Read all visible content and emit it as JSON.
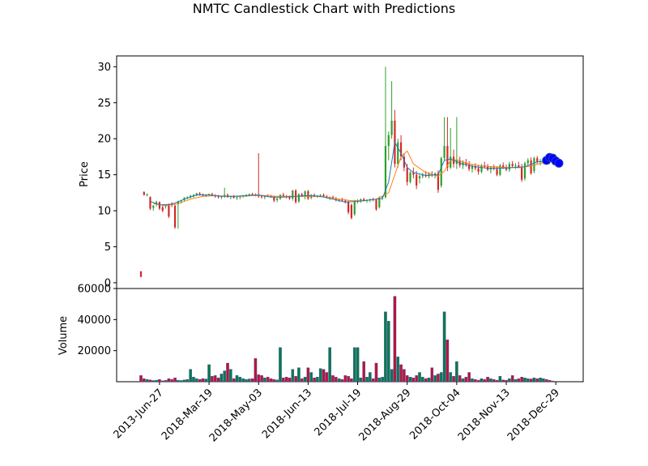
{
  "chart_data": {
    "type": "candlestick",
    "title": "NMTC Candlestick Chart with Predictions",
    "price_panel": {
      "ylabel": "Price",
      "yticks": [
        0,
        5,
        10,
        15,
        20,
        25,
        30
      ],
      "ylim": [
        -0.8,
        31.5
      ]
    },
    "volume_panel": {
      "ylabel": "Volume",
      "yticks": [
        20000,
        40000,
        60000
      ],
      "ytick_labels": [
        "20000",
        "40000",
        "60000"
      ],
      "ylim": [
        0,
        60000
      ]
    },
    "xticks": [
      {
        "i": 6,
        "label": "2013-Jun-27"
      },
      {
        "i": 22,
        "label": "2018-Mar-19"
      },
      {
        "i": 38,
        "label": "2018-May-03"
      },
      {
        "i": 54,
        "label": "2018-Jun-13"
      },
      {
        "i": 70,
        "label": "2018-Jul-19"
      },
      {
        "i": 86,
        "label": "2018-Aug-29"
      },
      {
        "i": 102,
        "label": "2018-Oct-04"
      },
      {
        "i": 118,
        "label": "2018-Nov-13"
      },
      {
        "i": 134,
        "label": "2018-Dec-29"
      }
    ],
    "n_points": 136,
    "up_color": "#2ca02c",
    "down_color": "#d62728",
    "ma_short_color": "#1f77b4",
    "ma_long_color": "#ff7f0e",
    "prediction_color": "#0000ff",
    "volume_up_color": "#007a4d",
    "volume_down_color": "#b3173b",
    "volume_edge_color": "#5a4fa0",
    "candles": [
      [
        1.6,
        1.6,
        0.8,
        0.8,
        4000
      ],
      [
        12.6,
        12.7,
        12.1,
        12.2,
        2000
      ],
      [
        12.2,
        12.4,
        12.0,
        12.3,
        1500
      ],
      [
        11.9,
        12.0,
        10.1,
        10.3,
        1200
      ],
      [
        10.4,
        10.8,
        10.0,
        10.7,
        800
      ],
      [
        10.9,
        11.4,
        10.6,
        11.2,
        1000
      ],
      [
        11.2,
        11.3,
        10.1,
        10.3,
        1500
      ],
      [
        10.5,
        10.8,
        9.8,
        10.0,
        600
      ],
      [
        10.6,
        10.9,
        10.3,
        10.8,
        900
      ],
      [
        10.8,
        11.0,
        9.0,
        9.2,
        2000
      ],
      [
        11.0,
        11.2,
        10.5,
        10.8,
        1500
      ],
      [
        10.7,
        10.9,
        7.5,
        7.7,
        2500
      ],
      [
        10.9,
        11.4,
        7.5,
        11.3,
        1000
      ],
      [
        11.3,
        11.5,
        11.0,
        11.4,
        800
      ],
      [
        11.5,
        11.9,
        11.3,
        11.8,
        1200
      ],
      [
        11.8,
        12.0,
        11.6,
        11.9,
        1500
      ],
      [
        11.9,
        12.2,
        11.7,
        12.1,
        8000
      ],
      [
        12.0,
        12.3,
        11.8,
        12.2,
        3000
      ],
      [
        12.2,
        12.5,
        12.0,
        12.4,
        2000
      ],
      [
        12.4,
        12.6,
        12.1,
        12.2,
        1500
      ],
      [
        12.2,
        12.4,
        12.0,
        12.1,
        2000
      ],
      [
        12.1,
        12.3,
        11.9,
        12.2,
        1800
      ],
      [
        12.2,
        12.4,
        12.0,
        12.3,
        11000
      ],
      [
        12.3,
        12.5,
        12.0,
        12.1,
        3500
      ],
      [
        12.1,
        12.3,
        11.8,
        12.0,
        4000
      ],
      [
        12.0,
        12.2,
        11.7,
        11.9,
        2500
      ],
      [
        11.9,
        12.1,
        11.6,
        12.0,
        5000
      ],
      [
        12.0,
        13.2,
        11.8,
        12.2,
        7000
      ],
      [
        12.2,
        12.4,
        11.8,
        11.9,
        12000
      ],
      [
        11.9,
        12.1,
        11.6,
        12.0,
        8000
      ],
      [
        12.0,
        12.2,
        11.7,
        11.8,
        2000
      ],
      [
        11.8,
        12.0,
        11.5,
        11.9,
        4000
      ],
      [
        11.9,
        12.1,
        11.6,
        12.0,
        3000
      ],
      [
        12.0,
        12.2,
        11.8,
        12.1,
        2000
      ],
      [
        12.1,
        12.3,
        11.9,
        12.2,
        1500
      ],
      [
        12.2,
        12.4,
        12.0,
        12.3,
        1800
      ],
      [
        12.3,
        12.5,
        12.1,
        12.2,
        2000
      ],
      [
        12.2,
        12.4,
        12.0,
        12.1,
        15000
      ],
      [
        12.1,
        18.0,
        11.8,
        12.0,
        4500
      ],
      [
        12.0,
        12.2,
        11.7,
        11.9,
        4000
      ],
      [
        11.9,
        12.1,
        11.6,
        12.1,
        2500
      ],
      [
        12.1,
        12.3,
        11.9,
        12.0,
        3000
      ],
      [
        12.0,
        12.2,
        11.8,
        11.9,
        2000
      ],
      [
        11.9,
        12.1,
        11.2,
        11.4,
        1500
      ],
      [
        11.5,
        11.8,
        11.2,
        11.7,
        1200
      ],
      [
        11.7,
        12.3,
        11.5,
        12.2,
        22000
      ],
      [
        12.2,
        12.5,
        11.9,
        12.0,
        2500
      ],
      [
        12.0,
        12.2,
        11.7,
        11.9,
        3000
      ],
      [
        11.9,
        12.1,
        11.5,
        11.7,
        2500
      ],
      [
        11.7,
        12.9,
        11.4,
        12.8,
        8000
      ],
      [
        12.8,
        13.0,
        11.0,
        11.2,
        3500
      ],
      [
        11.3,
        12.4,
        11.1,
        12.3,
        9000
      ],
      [
        12.3,
        12.5,
        11.9,
        12.0,
        2000
      ],
      [
        12.0,
        12.8,
        11.6,
        12.7,
        3000
      ],
      [
        12.7,
        12.9,
        11.5,
        11.7,
        9000
      ],
      [
        11.8,
        12.3,
        11.6,
        12.2,
        6000
      ],
      [
        12.2,
        12.4,
        11.9,
        12.0,
        2500
      ],
      [
        12.0,
        12.2,
        11.8,
        12.1,
        3000
      ],
      [
        12.1,
        12.3,
        11.9,
        12.2,
        8500
      ],
      [
        12.2,
        12.4,
        11.9,
        12.0,
        8000
      ],
      [
        12.0,
        12.2,
        11.7,
        11.8,
        6000
      ],
      [
        11.8,
        12.0,
        11.5,
        11.9,
        22000
      ],
      [
        11.9,
        12.1,
        11.6,
        11.7,
        4000
      ],
      [
        11.7,
        11.9,
        11.3,
        11.5,
        3000
      ],
      [
        11.5,
        11.7,
        11.2,
        11.6,
        2000
      ],
      [
        11.6,
        11.8,
        11.3,
        11.4,
        1500
      ],
      [
        11.4,
        11.6,
        11.0,
        11.2,
        4000
      ],
      [
        11.2,
        11.4,
        9.5,
        9.8,
        3500
      ],
      [
        10.8,
        11.0,
        8.8,
        9.0,
        2000
      ],
      [
        9.5,
        11.5,
        9.3,
        11.3,
        22000
      ],
      [
        11.3,
        11.6,
        11.0,
        11.4,
        22000
      ],
      [
        11.4,
        11.7,
        11.1,
        11.6,
        2500
      ],
      [
        11.6,
        11.8,
        11.3,
        11.4,
        13000
      ],
      [
        11.4,
        11.6,
        11.1,
        11.5,
        3000
      ],
      [
        11.5,
        11.7,
        11.2,
        11.6,
        6000
      ],
      [
        11.6,
        11.8,
        11.3,
        11.5,
        2000
      ],
      [
        11.5,
        11.7,
        10.0,
        10.2,
        12000
      ],
      [
        10.5,
        12.0,
        10.3,
        11.8,
        2500
      ],
      [
        11.8,
        12.0,
        11.5,
        11.9,
        3000
      ],
      [
        11.9,
        30.0,
        11.7,
        19.0,
        45000
      ],
      [
        19.0,
        21.0,
        17.0,
        20.5,
        39000
      ],
      [
        20.5,
        28.0,
        20.0,
        22.5,
        8000
      ],
      [
        22.5,
        24.0,
        16.0,
        16.5,
        55000
      ],
      [
        16.5,
        20.0,
        16.0,
        19.5,
        16000
      ],
      [
        19.5,
        20.5,
        17.0,
        17.5,
        11000
      ],
      [
        17.5,
        18.0,
        15.5,
        16.0,
        8000
      ],
      [
        16.0,
        16.5,
        13.5,
        14.0,
        4000
      ],
      [
        14.0,
        15.5,
        13.8,
        15.3,
        3000
      ],
      [
        15.3,
        16.0,
        14.5,
        15.0,
        2500
      ],
      [
        15.0,
        15.5,
        13.0,
        13.5,
        4000
      ],
      [
        14.5,
        15.0,
        13.8,
        14.8,
        6000
      ],
      [
        14.8,
        15.3,
        14.5,
        15.0,
        3000
      ],
      [
        15.0,
        15.5,
        14.6,
        14.8,
        2000
      ],
      [
        14.8,
        15.4,
        14.5,
        15.1,
        2500
      ],
      [
        15.1,
        15.5,
        14.7,
        14.9,
        9000
      ],
      [
        14.9,
        15.3,
        14.5,
        15.2,
        4000
      ],
      [
        15.2,
        15.6,
        12.5,
        12.9,
        5000
      ],
      [
        13.5,
        17.5,
        13.2,
        17.3,
        6000
      ],
      [
        17.3,
        23.0,
        17.0,
        19.0,
        45000
      ],
      [
        19.0,
        23.0,
        15.5,
        16.0,
        27000
      ],
      [
        16.0,
        21.5,
        15.8,
        17.5,
        6000
      ],
      [
        17.5,
        18.5,
        16.0,
        16.5,
        3500
      ],
      [
        16.5,
        23.0,
        15.8,
        17.0,
        13000
      ],
      [
        17.0,
        17.5,
        16.0,
        16.3,
        4000
      ],
      [
        16.3,
        17.0,
        15.8,
        16.7,
        2000
      ],
      [
        16.7,
        17.2,
        16.1,
        16.4,
        3000
      ],
      [
        16.4,
        16.9,
        15.5,
        15.8,
        6000
      ],
      [
        15.8,
        16.5,
        15.3,
        16.2,
        2000
      ],
      [
        16.2,
        16.6,
        15.6,
        15.9,
        1500
      ],
      [
        15.9,
        16.4,
        15.0,
        15.4,
        1000
      ],
      [
        15.4,
        16.5,
        15.2,
        16.3,
        2000
      ],
      [
        16.3,
        16.8,
        15.9,
        16.1,
        1500
      ],
      [
        16.1,
        16.5,
        15.5,
        15.7,
        3000
      ],
      [
        15.7,
        16.2,
        15.2,
        16.0,
        2000
      ],
      [
        16.0,
        16.4,
        15.6,
        15.8,
        1500
      ],
      [
        15.8,
        16.2,
        14.8,
        15.0,
        1000
      ],
      [
        15.0,
        16.5,
        14.8,
        16.3,
        3500
      ],
      [
        16.3,
        16.7,
        15.8,
        16.0,
        1200
      ],
      [
        16.0,
        16.4,
        15.5,
        15.7,
        1000
      ],
      [
        15.7,
        16.8,
        15.4,
        16.5,
        2000
      ],
      [
        16.5,
        16.9,
        16.0,
        16.2,
        4000
      ],
      [
        16.2,
        16.6,
        15.8,
        16.3,
        1500
      ],
      [
        16.3,
        16.8,
        15.9,
        16.0,
        2000
      ],
      [
        16.0,
        16.5,
        14.0,
        14.3,
        3000
      ],
      [
        14.5,
        16.8,
        14.2,
        16.6,
        2500
      ],
      [
        16.6,
        17.3,
        16.3,
        17.0,
        2000
      ],
      [
        17.0,
        17.4,
        15.0,
        15.2,
        1800
      ],
      [
        15.5,
        17.5,
        15.2,
        17.3,
        2500
      ],
      [
        17.3,
        17.6,
        16.5,
        16.8,
        2000
      ],
      [
        16.8,
        17.2,
        16.3,
        16.9,
        2500
      ],
      [
        16.9,
        17.3,
        16.5,
        17.0,
        2000
      ],
      [
        17.0,
        17.3,
        16.6,
        16.8,
        1500
      ],
      [
        16.8,
        17.1,
        16.5,
        16.7,
        1000
      ],
      [
        16.7,
        17.0,
        16.4,
        16.6,
        500
      ]
    ],
    "ma_short": [
      [
        3,
        11.3
      ],
      [
        6,
        10.8
      ],
      [
        10,
        10.9
      ],
      [
        14,
        11.6
      ],
      [
        18,
        12.2
      ],
      [
        22,
        12.2
      ],
      [
        26,
        12.0
      ],
      [
        30,
        12.0
      ],
      [
        34,
        12.1
      ],
      [
        38,
        12.2
      ],
      [
        42,
        11.9
      ],
      [
        46,
        11.9
      ],
      [
        50,
        12.0
      ],
      [
        54,
        12.1
      ],
      [
        58,
        12.0
      ],
      [
        62,
        11.6
      ],
      [
        66,
        11.2
      ],
      [
        70,
        11.3
      ],
      [
        74,
        11.5
      ],
      [
        78,
        11.7
      ],
      [
        80,
        14.0
      ],
      [
        82,
        19.5
      ],
      [
        84,
        18.0
      ],
      [
        86,
        16.0
      ],
      [
        88,
        15.3
      ],
      [
        92,
        14.9
      ],
      [
        96,
        15.0
      ],
      [
        98,
        17.0
      ],
      [
        100,
        17.2
      ],
      [
        102,
        16.8
      ],
      [
        104,
        16.5
      ],
      [
        108,
        16.1
      ],
      [
        112,
        15.9
      ],
      [
        116,
        15.9
      ],
      [
        120,
        16.0
      ],
      [
        124,
        16.1
      ],
      [
        128,
        16.8
      ],
      [
        132,
        16.9
      ],
      [
        135,
        16.8
      ]
    ],
    "ma_long": [
      [
        4,
        11.0
      ],
      [
        8,
        10.7
      ],
      [
        12,
        11.0
      ],
      [
        16,
        11.6
      ],
      [
        20,
        12.0
      ],
      [
        24,
        12.1
      ],
      [
        28,
        12.0
      ],
      [
        32,
        12.0
      ],
      [
        36,
        12.1
      ],
      [
        40,
        12.1
      ],
      [
        44,
        12.0
      ],
      [
        48,
        12.0
      ],
      [
        52,
        12.0
      ],
      [
        56,
        12.0
      ],
      [
        60,
        11.9
      ],
      [
        64,
        11.6
      ],
      [
        68,
        11.4
      ],
      [
        72,
        11.4
      ],
      [
        76,
        11.6
      ],
      [
        80,
        12.5
      ],
      [
        82,
        15.0
      ],
      [
        84,
        17.5
      ],
      [
        86,
        18.3
      ],
      [
        88,
        16.5
      ],
      [
        92,
        15.3
      ],
      [
        96,
        14.8
      ],
      [
        98,
        15.5
      ],
      [
        100,
        17.0
      ],
      [
        102,
        17.1
      ],
      [
        106,
        16.5
      ],
      [
        110,
        16.2
      ],
      [
        114,
        16.1
      ],
      [
        118,
        16.0
      ],
      [
        122,
        16.0
      ],
      [
        126,
        16.2
      ],
      [
        130,
        16.7
      ],
      [
        135,
        16.9
      ]
    ],
    "predictions": [
      [
        131,
        17.0
      ],
      [
        132,
        17.4
      ],
      [
        133,
        17.3
      ],
      [
        134,
        16.9
      ],
      [
        135,
        16.6
      ]
    ]
  }
}
